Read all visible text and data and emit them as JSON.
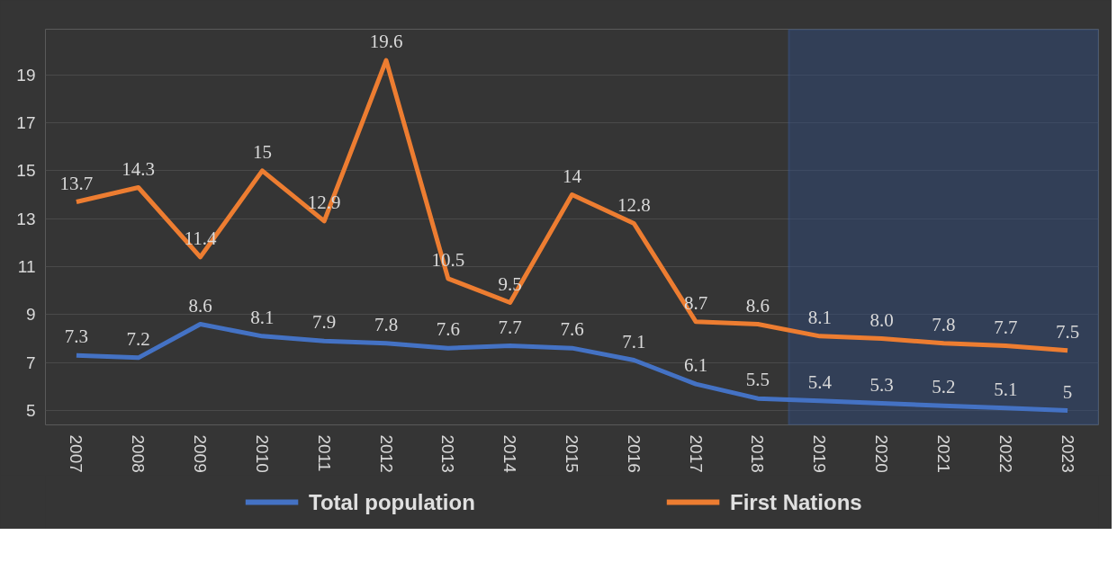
{
  "chart_data": {
    "type": "line",
    "categories": [
      "2007",
      "2008",
      "2009",
      "2010",
      "2011",
      "2012",
      "2013",
      "2014",
      "2015",
      "2016",
      "2017",
      "2018",
      "2019",
      "2020",
      "2021",
      "2022",
      "2023"
    ],
    "series": [
      {
        "name": "Total population",
        "color": "#4472c4",
        "values": [
          7.3,
          7.2,
          8.6,
          8.1,
          7.9,
          7.8,
          7.6,
          7.7,
          7.6,
          7.1,
          6.1,
          5.5,
          5.4,
          5.3,
          5.2,
          5.1,
          5
        ],
        "value_labels": [
          "7.3",
          "7.2",
          "8.6",
          "8.1",
          "7.9",
          "7.8",
          "7.6",
          "7.7",
          "7.6",
          "7.1",
          "6.1",
          "5.5",
          "5.4",
          "5.3",
          "5.2",
          "5.1",
          "5"
        ]
      },
      {
        "name": "First Nations",
        "color": "#ed7d31",
        "values": [
          13.7,
          14.3,
          11.4,
          15,
          12.9,
          19.6,
          10.5,
          9.5,
          14,
          12.8,
          8.7,
          8.6,
          8.1,
          8.0,
          7.8,
          7.7,
          7.5
        ],
        "value_labels": [
          "13.7",
          "14.3",
          "11.4",
          "15",
          "12.9",
          "19.6",
          "10.5",
          "9.5",
          "14",
          "12.8",
          "8.7",
          "8.6",
          "8.1",
          "8.0",
          "7.8",
          "7.7",
          "7.5"
        ]
      }
    ],
    "ylim": [
      4.4,
      20.9
    ],
    "yticks": [
      5,
      7,
      9,
      11,
      13,
      15,
      17,
      19
    ],
    "grid": "y",
    "legend": "bottom",
    "line_style": "solid",
    "marker": "none",
    "bands": [
      {
        "axis": "x",
        "from": "2019",
        "to": "2023",
        "color": "#2f4a7a"
      }
    ]
  }
}
